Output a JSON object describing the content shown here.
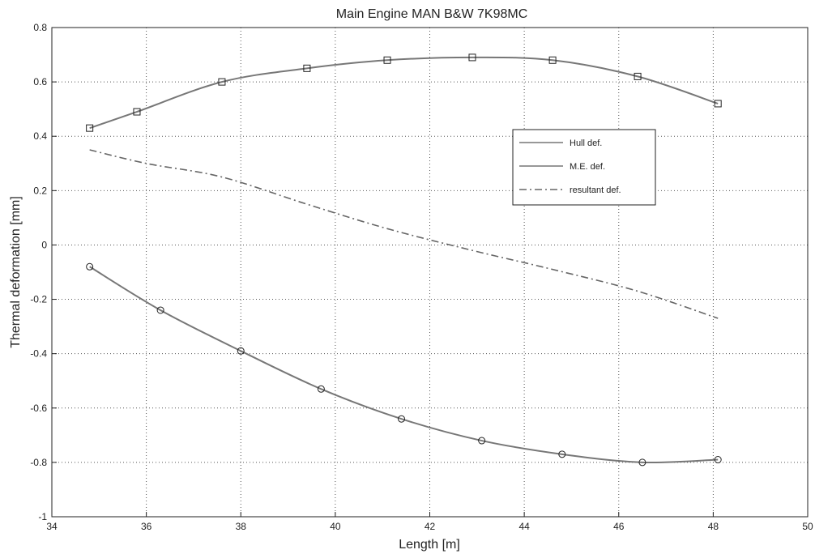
{
  "chart_data": {
    "type": "line",
    "title": "Main Engine MAN B&W 7K98MC",
    "xlabel": "Length [m]",
    "ylabel": "Thermal deformation [mm]",
    "xlim": [
      34,
      50
    ],
    "ylim": [
      -1,
      0.8
    ],
    "xticks": [
      34,
      36,
      38,
      40,
      42,
      44,
      46,
      48,
      50
    ],
    "yticks": [
      -1,
      -0.8,
      -0.6,
      -0.4,
      -0.2,
      0,
      0.2,
      0.4,
      0.6,
      0.8
    ],
    "grid": true,
    "legend_position": "upper-right",
    "series": [
      {
        "name": "Hull def.",
        "marker": "circle",
        "line_style": "solid",
        "color": "#777777",
        "x": [
          34.8,
          36.3,
          38.0,
          39.7,
          41.4,
          43.1,
          44.8,
          46.5,
          48.1
        ],
        "y": [
          -0.08,
          -0.24,
          -0.39,
          -0.53,
          -0.64,
          -0.72,
          -0.77,
          -0.8,
          -0.79
        ]
      },
      {
        "name": "M.E. def.",
        "marker": "square",
        "line_style": "solid",
        "color": "#777777",
        "x": [
          34.8,
          35.8,
          37.6,
          39.4,
          41.1,
          42.9,
          44.6,
          46.4,
          48.1
        ],
        "y": [
          0.43,
          0.49,
          0.6,
          0.65,
          0.68,
          0.69,
          0.68,
          0.62,
          0.52
        ]
      },
      {
        "name": "resultant def.",
        "marker": "none",
        "line_style": "dashdot",
        "color": "#666666",
        "x": [
          34.8,
          36.0,
          37.6,
          39.4,
          41.1,
          42.9,
          44.6,
          46.4,
          48.1
        ],
        "y": [
          0.35,
          0.3,
          0.25,
          0.15,
          0.06,
          -0.02,
          -0.09,
          -0.17,
          -0.27
        ]
      }
    ]
  }
}
